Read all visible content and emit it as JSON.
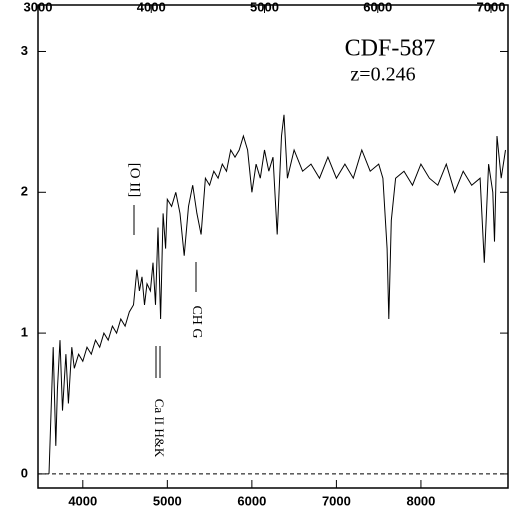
{
  "chart_data": {
    "type": "line",
    "annotations": {
      "name": "CDF-587",
      "redshift": "z=0.246",
      "oii": "[O II]",
      "chg": "CH G",
      "cahk": "Ca II H&K"
    },
    "x": [
      3600,
      3650,
      3680,
      3700,
      3730,
      3760,
      3800,
      3830,
      3870,
      3900,
      3950,
      4000,
      4050,
      4100,
      4150,
      4200,
      4250,
      4300,
      4350,
      4400,
      4450,
      4500,
      4550,
      4600,
      4640,
      4670,
      4700,
      4730,
      4760,
      4800,
      4830,
      4860,
      4890,
      4920,
      4950,
      4980,
      5000,
      5050,
      5100,
      5150,
      5200,
      5250,
      5300,
      5350,
      5400,
      5450,
      5500,
      5550,
      5600,
      5650,
      5700,
      5750,
      5800,
      5850,
      5900,
      5950,
      6000,
      6050,
      6100,
      6150,
      6200,
      6250,
      6300,
      6350,
      6380,
      6420,
      6500,
      6600,
      6700,
      6800,
      6900,
      7000,
      7100,
      7200,
      7300,
      7400,
      7500,
      7550,
      7600,
      7620,
      7650,
      7700,
      7800,
      7900,
      8000,
      8100,
      8200,
      8300,
      8400,
      8500,
      8600,
      8700,
      8750,
      8800,
      8850,
      8870,
      8900,
      8950,
      9000
    ],
    "values": [
      0.0,
      0.9,
      0.2,
      0.6,
      0.95,
      0.45,
      0.85,
      0.5,
      0.9,
      0.75,
      0.85,
      0.8,
      0.9,
      0.85,
      0.95,
      0.9,
      1.0,
      0.95,
      1.05,
      1.0,
      1.1,
      1.05,
      1.15,
      1.2,
      1.45,
      1.3,
      1.4,
      1.2,
      1.35,
      1.3,
      1.5,
      1.2,
      1.75,
      1.1,
      1.85,
      1.6,
      1.95,
      1.9,
      2.0,
      1.85,
      1.55,
      1.9,
      2.05,
      1.85,
      1.7,
      2.1,
      2.05,
      2.15,
      2.1,
      2.2,
      2.15,
      2.3,
      2.25,
      2.3,
      2.4,
      2.3,
      2.0,
      2.2,
      2.1,
      2.3,
      2.15,
      2.25,
      1.7,
      2.4,
      2.55,
      2.1,
      2.3,
      2.15,
      2.2,
      2.1,
      2.25,
      2.1,
      2.2,
      2.1,
      2.3,
      2.15,
      2.2,
      2.1,
      1.6,
      1.1,
      1.8,
      2.1,
      2.15,
      2.05,
      2.2,
      2.1,
      2.05,
      2.2,
      2.0,
      2.15,
      2.05,
      2.1,
      1.5,
      2.2,
      2.0,
      1.65,
      2.4,
      2.1,
      2.3
    ],
    "color": "#000000",
    "xlim": [
      3470,
      9030
    ],
    "xticks": [
      4000,
      5000,
      6000,
      7000,
      8000
    ],
    "x2lim": [
      3000,
      7150
    ],
    "x2ticks": [
      3000,
      4000,
      5000,
      6000,
      7000
    ],
    "ylim": [
      -0.1,
      3.33
    ],
    "yticks": [
      0,
      1,
      2,
      3
    ]
  }
}
